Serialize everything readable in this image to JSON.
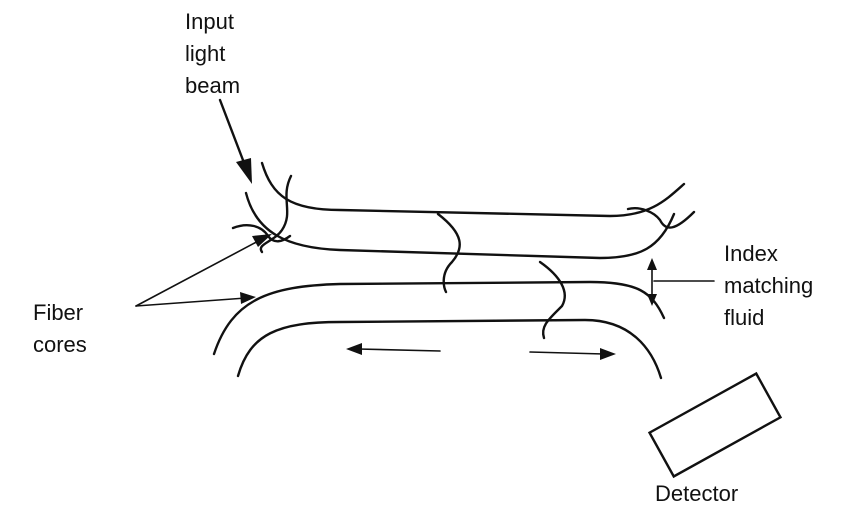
{
  "labels": {
    "input_line1": "Input",
    "input_line2": "light",
    "input_line3": "beam",
    "fiber_line1": "Fiber",
    "fiber_line2": "cores",
    "index_line1": "Index",
    "index_line2": "matching",
    "index_line3": "fluid",
    "detector": "Detector"
  },
  "colors": {
    "ink": "#111111",
    "background": "#ffffff"
  }
}
